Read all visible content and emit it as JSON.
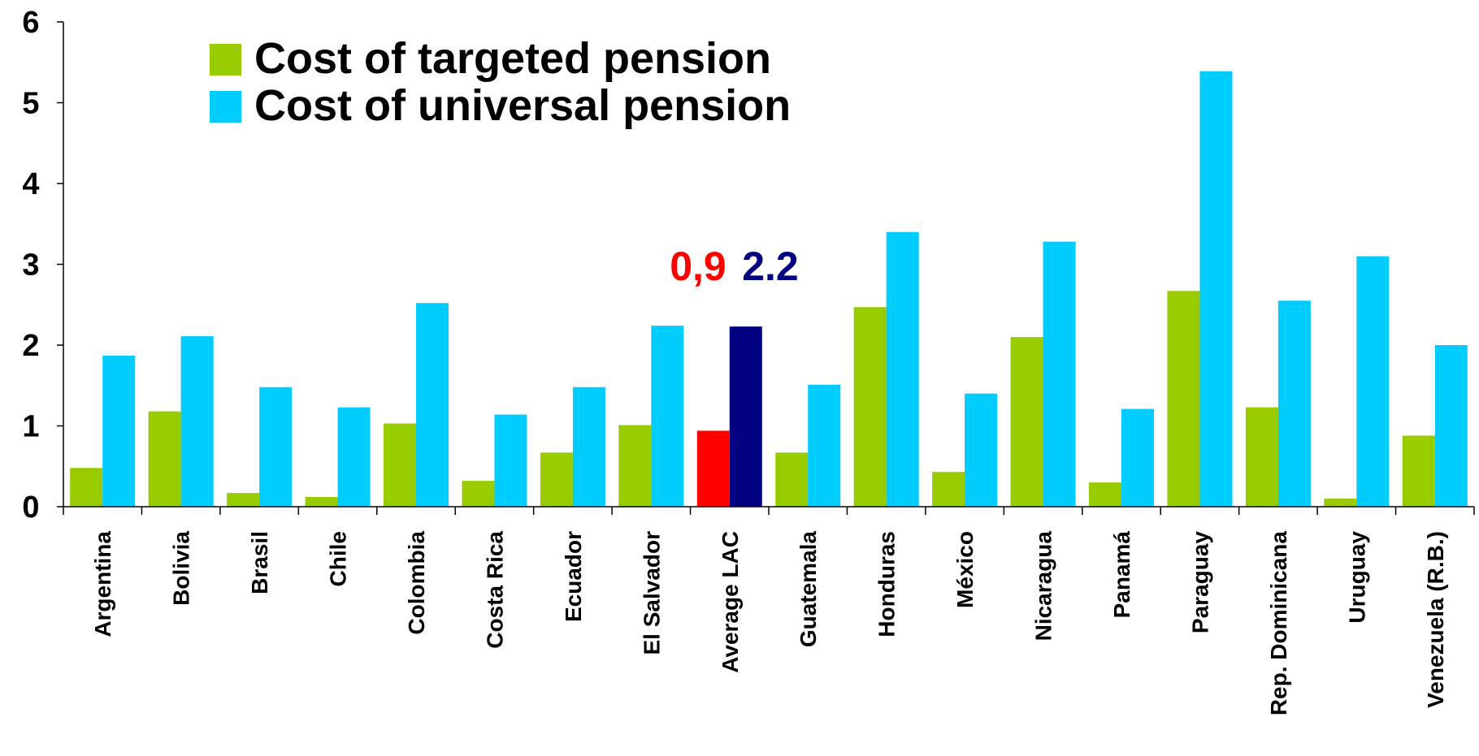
{
  "chart_data": {
    "type": "bar",
    "categories": [
      "Argentina",
      "Bolivia",
      "Brasil",
      "Chile",
      "Colombia",
      "Costa Rica",
      "Ecuador",
      "El Salvador",
      "Average LAC",
      "Guatemala",
      "Honduras",
      "México",
      "Nicaragua",
      "Panamá",
      "Paraguay",
      "Rep. Dominicana",
      "Uruguay",
      "Venezuela (R.B.)"
    ],
    "series": [
      {
        "name": "Cost of targeted pension",
        "color": "#99cc00",
        "colors": [
          "#99cc00",
          "#99cc00",
          "#99cc00",
          "#99cc00",
          "#99cc00",
          "#99cc00",
          "#99cc00",
          "#99cc00",
          "#ff0000",
          "#99cc00",
          "#99cc00",
          "#99cc00",
          "#99cc00",
          "#99cc00",
          "#99cc00",
          "#99cc00",
          "#99cc00",
          "#99cc00"
        ],
        "values": [
          0.48,
          1.18,
          0.17,
          0.12,
          1.03,
          0.32,
          0.67,
          1.01,
          0.94,
          0.67,
          2.47,
          0.43,
          2.1,
          0.3,
          2.67,
          1.23,
          0.1,
          0.88
        ]
      },
      {
        "name": "Cost of universal pension",
        "color": "#00ccff",
        "colors": [
          "#00ccff",
          "#00ccff",
          "#00ccff",
          "#00ccff",
          "#00ccff",
          "#00ccff",
          "#00ccff",
          "#00ccff",
          "#000080",
          "#00ccff",
          "#00ccff",
          "#00ccff",
          "#00ccff",
          "#00ccff",
          "#00ccff",
          "#00ccff",
          "#00ccff",
          "#00ccff"
        ],
        "values": [
          1.87,
          2.11,
          1.48,
          1.23,
          2.52,
          1.14,
          1.48,
          2.24,
          2.23,
          1.51,
          3.4,
          1.4,
          3.28,
          1.21,
          5.39,
          2.55,
          3.1,
          2.0
        ]
      }
    ],
    "annotations": [
      {
        "text": "0,9",
        "color": "#ff0000"
      },
      {
        "text": "2.2",
        "color": "#000080"
      }
    ],
    "ylim": [
      0,
      6
    ],
    "yticks": [
      0,
      1,
      2,
      3,
      4,
      5,
      6
    ],
    "grid": false
  }
}
